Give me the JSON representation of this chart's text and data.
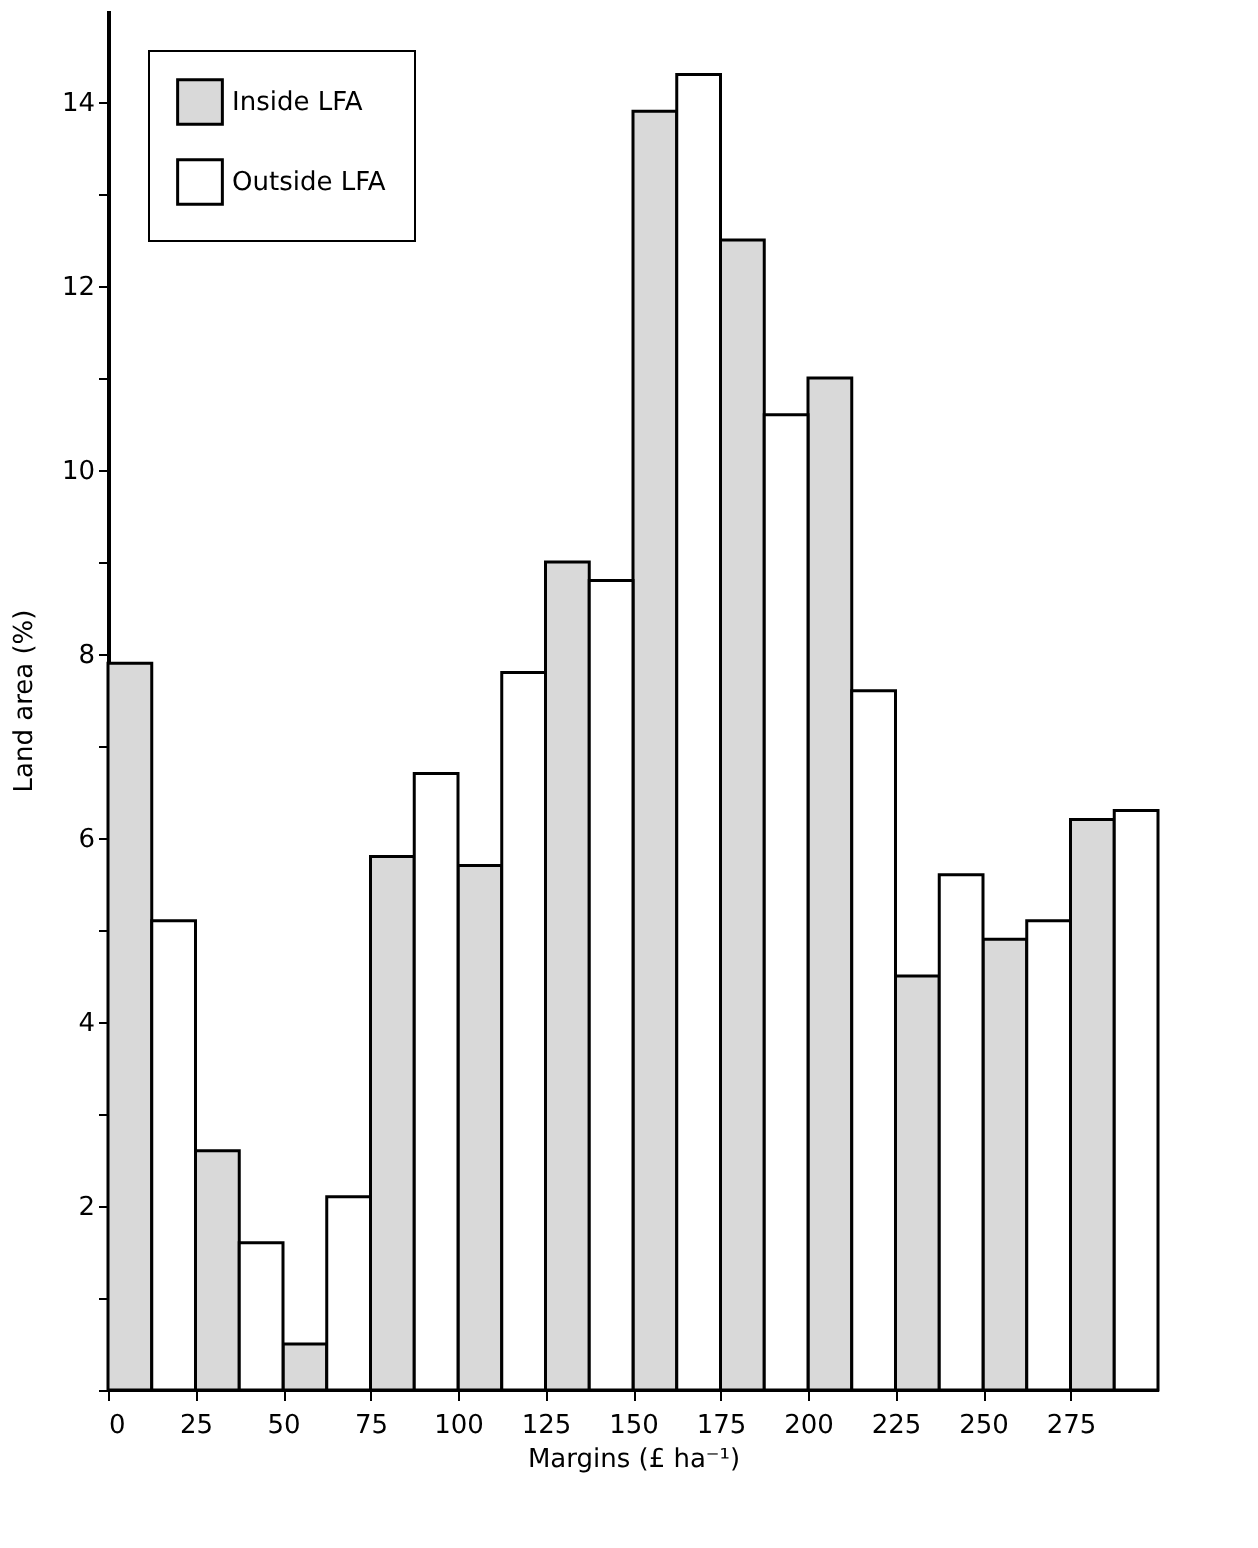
{
  "chart_data": {
    "type": "bar",
    "xlabel": "Margins (£ ha⁻¹)",
    "ylabel": "Land area (%)",
    "series": [
      {
        "name": "Inside LFA",
        "color": "#d9d9d9",
        "x": [
          6.25,
          31.25,
          56.25,
          81.25,
          106.25,
          131.25,
          156.25,
          181.25,
          206.25,
          231.25,
          256.25,
          281.25
        ],
        "values": [
          7.9,
          2.6,
          0.5,
          5.8,
          5.7,
          9.0,
          13.9,
          12.5,
          11.0,
          4.5,
          4.9,
          6.2
        ]
      },
      {
        "name": "Outside LFA",
        "color": "#ffffff",
        "x": [
          18.75,
          43.75,
          68.75,
          93.75,
          118.75,
          143.75,
          168.75,
          193.75,
          218.75,
          243.75,
          268.75,
          293.75
        ],
        "values": [
          5.1,
          1.6,
          2.1,
          6.7,
          7.8,
          8.8,
          14.3,
          10.6,
          7.6,
          5.6,
          5.1,
          6.3
        ]
      }
    ],
    "xlim": [
      0,
      300
    ],
    "xticks": [
      0,
      25,
      50,
      75,
      100,
      125,
      150,
      175,
      200,
      225,
      250,
      275
    ],
    "ylim": [
      0,
      15
    ],
    "yticks": [
      {
        "value": 0,
        "label": null
      },
      {
        "value": 1,
        "label": null
      },
      2,
      {
        "value": 3,
        "label": null
      },
      4,
      {
        "value": 5,
        "label": null
      },
      6,
      {
        "value": 7,
        "label": null
      },
      8,
      {
        "value": 9,
        "label": null
      },
      10,
      {
        "value": 11,
        "label": null
      },
      12,
      {
        "value": 13,
        "label": null
      },
      14
    ],
    "grid": false,
    "legend": "top left"
  }
}
